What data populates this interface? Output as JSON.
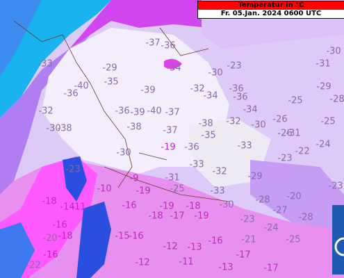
{
  "header": {
    "title": "Temperatur in °C",
    "subtitle": "Fr. 05.Jan. 2024 0600 UTC"
  },
  "labels": [
    -37,
    -36,
    -30,
    -31,
    -33,
    -29,
    -34,
    -30,
    -23,
    -35,
    -39,
    -36,
    -40,
    -29,
    -32,
    -34,
    -36,
    -28,
    -36,
    -25,
    -32,
    -36,
    -39,
    -40,
    -37,
    -34,
    -26,
    -25,
    -30,
    -38,
    -38,
    -37,
    -38,
    -32,
    -30,
    -35,
    -26,
    -31,
    -24,
    -22,
    -19,
    -36,
    -33,
    -23,
    -30,
    -33,
    -32,
    -29,
    -31,
    -25,
    -23,
    -9,
    -10,
    -19,
    -33,
    -23,
    -20,
    -28,
    -16,
    -19,
    -18,
    -30,
    -18,
    -14,
    -11,
    -18,
    -17,
    -19,
    -27,
    -23,
    -16,
    -28,
    -24,
    -20,
    -18,
    -15,
    -16,
    -16,
    -21,
    -25,
    -12,
    -13,
    -17,
    -12,
    -11,
    -17,
    -13,
    -16,
    -22
  ]
}
